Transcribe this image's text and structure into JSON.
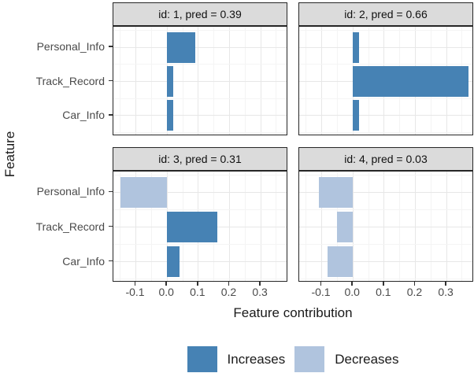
{
  "chart_data": {
    "type": "bar",
    "orientation": "horizontal",
    "title": "",
    "xlabel": "Feature contribution",
    "ylabel": "Feature",
    "categories": [
      "Personal_Info",
      "Track_Record",
      "Car_Info"
    ],
    "x_tick_values": [
      -0.1,
      0.0,
      0.1,
      0.2,
      0.3
    ],
    "x_tick_labels": [
      "-0.1",
      "0.0",
      "0.1",
      "0.2",
      "0.3"
    ],
    "x_minor_values": [
      -0.15,
      -0.05,
      0.05,
      0.15,
      0.25,
      0.35
    ],
    "xlim": [
      -0.172,
      0.388
    ],
    "grid": true,
    "facet_layout": {
      "rows": 2,
      "cols": 2
    },
    "facets": [
      {
        "id": "1",
        "pred": "0.39",
        "strip_label": "id: 1, pred = 0.39",
        "values": [
          0.09,
          0.02,
          0.02
        ]
      },
      {
        "id": "2",
        "pred": "0.66",
        "strip_label": "id: 2, pred = 0.66",
        "values": [
          0.02,
          0.37,
          0.02
        ]
      },
      {
        "id": "3",
        "pred": "0.31",
        "strip_label": "id: 3, pred = 0.31",
        "values": [
          -0.15,
          0.16,
          0.04
        ]
      },
      {
        "id": "4",
        "pred": "0.03",
        "strip_label": "id: 4, pred = 0.03",
        "values": [
          -0.11,
          -0.05,
          -0.08
        ]
      }
    ],
    "legend": {
      "position": "bottom",
      "items": [
        {
          "label": "Increases",
          "color": "#4682b4"
        },
        {
          "label": "Decreases",
          "color": "#b0c4de"
        }
      ]
    },
    "colors": {
      "increase": "#4682b4",
      "decrease": "#b0c4de",
      "strip_fill": "#dbdbdb",
      "panel_border": "#262626",
      "grid_major": "#e7e7e7",
      "grid_minor": "#f4f4f4",
      "tick_text": "#4a4a4a"
    }
  }
}
